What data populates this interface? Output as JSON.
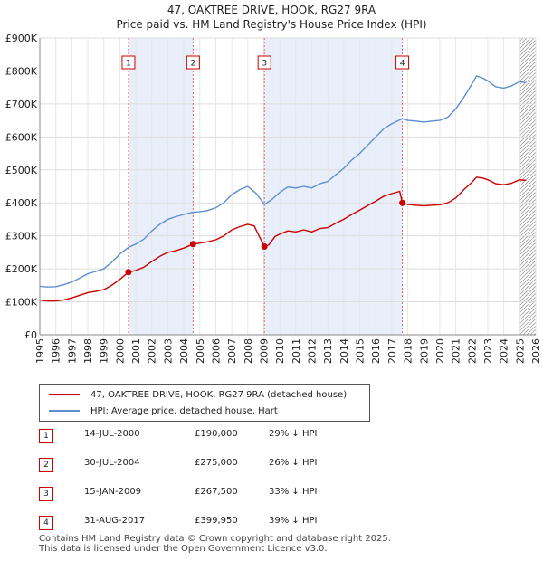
{
  "title_line1": "47, OAKTREE DRIVE, HOOK, RG27 9RA",
  "title_line2": "Price paid vs. HM Land Registry's House Price Index (HPI)",
  "colors": {
    "property": "#cc0000",
    "hpi": "#5b8fd0",
    "band": "#e8eefa",
    "marker": "#cc0000"
  },
  "chart_data": {
    "type": "line",
    "title": "Price paid vs. HM Land Registry's House Price Index (HPI)",
    "xlabel": "",
    "ylabel": "",
    "xlim": [
      1995,
      2026
    ],
    "ylim": [
      0,
      900000
    ],
    "x_ticks": [
      "1995",
      "1996",
      "1997",
      "1998",
      "1999",
      "2000",
      "2001",
      "2002",
      "2003",
      "2004",
      "2005",
      "2006",
      "2007",
      "2008",
      "2009",
      "2010",
      "2011",
      "2012",
      "2013",
      "2014",
      "2015",
      "2016",
      "2017",
      "2018",
      "2019",
      "2020",
      "2021",
      "2022",
      "2023",
      "2024",
      "2025",
      "2026"
    ],
    "y_ticks": [
      {
        "value": 0,
        "label": "£0"
      },
      {
        "value": 100000,
        "label": "£100K"
      },
      {
        "value": 200000,
        "label": "£200K"
      },
      {
        "value": 300000,
        "label": "£300K"
      },
      {
        "value": 400000,
        "label": "£400K"
      },
      {
        "value": 500000,
        "label": "£500K"
      },
      {
        "value": 600000,
        "label": "£600K"
      },
      {
        "value": 700000,
        "label": "£700K"
      },
      {
        "value": 800000,
        "label": "£800K"
      },
      {
        "value": 900000,
        "label": "£900K"
      }
    ],
    "series": [
      {
        "name": "47, OAKTREE DRIVE, HOOK, RG27 9RA (detached house)",
        "color": "#cc0000",
        "points": [
          [
            1995.0,
            105000
          ],
          [
            1995.5,
            103000
          ],
          [
            1996.0,
            103000
          ],
          [
            1996.5,
            106000
          ],
          [
            1997.0,
            112000
          ],
          [
            1997.5,
            120000
          ],
          [
            1998.0,
            128000
          ],
          [
            1998.5,
            132000
          ],
          [
            1999.0,
            137000
          ],
          [
            1999.5,
            150000
          ],
          [
            2000.0,
            168000
          ],
          [
            2000.54,
            190000
          ],
          [
            2001.0,
            195000
          ],
          [
            2001.5,
            205000
          ],
          [
            2002.0,
            222000
          ],
          [
            2002.5,
            238000
          ],
          [
            2003.0,
            250000
          ],
          [
            2003.5,
            255000
          ],
          [
            2004.0,
            263000
          ],
          [
            2004.58,
            275000
          ],
          [
            2005.0,
            278000
          ],
          [
            2005.5,
            282000
          ],
          [
            2006.0,
            288000
          ],
          [
            2006.5,
            300000
          ],
          [
            2007.0,
            318000
          ],
          [
            2007.5,
            328000
          ],
          [
            2008.0,
            335000
          ],
          [
            2008.4,
            330000
          ],
          [
            2008.7,
            300000
          ],
          [
            2009.04,
            267500
          ],
          [
            2009.3,
            272000
          ],
          [
            2009.7,
            298000
          ],
          [
            2010.0,
            305000
          ],
          [
            2010.5,
            315000
          ],
          [
            2011.0,
            312000
          ],
          [
            2011.5,
            318000
          ],
          [
            2012.0,
            312000
          ],
          [
            2012.5,
            322000
          ],
          [
            2013.0,
            325000
          ],
          [
            2013.5,
            338000
          ],
          [
            2014.0,
            350000
          ],
          [
            2014.5,
            365000
          ],
          [
            2015.0,
            378000
          ],
          [
            2015.5,
            392000
          ],
          [
            2016.0,
            405000
          ],
          [
            2016.5,
            420000
          ],
          [
            2017.0,
            428000
          ],
          [
            2017.5,
            435000
          ],
          [
            2017.66,
            399950
          ],
          [
            2018.0,
            395000
          ],
          [
            2018.5,
            393000
          ],
          [
            2019.0,
            391000
          ],
          [
            2019.5,
            393000
          ],
          [
            2020.0,
            394000
          ],
          [
            2020.5,
            400000
          ],
          [
            2021.0,
            415000
          ],
          [
            2021.5,
            440000
          ],
          [
            2022.0,
            462000
          ],
          [
            2022.3,
            478000
          ],
          [
            2022.7,
            475000
          ],
          [
            2023.0,
            470000
          ],
          [
            2023.5,
            458000
          ],
          [
            2024.0,
            455000
          ],
          [
            2024.5,
            460000
          ],
          [
            2025.0,
            470000
          ],
          [
            2025.4,
            468000
          ]
        ]
      },
      {
        "name": "HPI: Average price, detached house, Hart",
        "color": "#5b8fd0",
        "points": [
          [
            1995.0,
            147000
          ],
          [
            1995.5,
            145000
          ],
          [
            1996.0,
            146000
          ],
          [
            1996.5,
            152000
          ],
          [
            1997.0,
            160000
          ],
          [
            1997.5,
            172000
          ],
          [
            1998.0,
            185000
          ],
          [
            1998.5,
            192000
          ],
          [
            1999.0,
            200000
          ],
          [
            1999.5,
            220000
          ],
          [
            2000.0,
            245000
          ],
          [
            2000.54,
            265000
          ],
          [
            2001.0,
            275000
          ],
          [
            2001.5,
            290000
          ],
          [
            2002.0,
            315000
          ],
          [
            2002.5,
            335000
          ],
          [
            2003.0,
            350000
          ],
          [
            2003.5,
            358000
          ],
          [
            2004.0,
            365000
          ],
          [
            2004.58,
            372000
          ],
          [
            2005.0,
            373000
          ],
          [
            2005.5,
            377000
          ],
          [
            2006.0,
            385000
          ],
          [
            2006.5,
            400000
          ],
          [
            2007.0,
            425000
          ],
          [
            2007.5,
            440000
          ],
          [
            2008.0,
            450000
          ],
          [
            2008.5,
            430000
          ],
          [
            2009.04,
            395000
          ],
          [
            2009.5,
            410000
          ],
          [
            2010.0,
            432000
          ],
          [
            2010.5,
            448000
          ],
          [
            2011.0,
            445000
          ],
          [
            2011.5,
            450000
          ],
          [
            2012.0,
            445000
          ],
          [
            2012.5,
            458000
          ],
          [
            2013.0,
            465000
          ],
          [
            2013.5,
            485000
          ],
          [
            2014.0,
            505000
          ],
          [
            2014.5,
            530000
          ],
          [
            2015.0,
            550000
          ],
          [
            2015.5,
            575000
          ],
          [
            2016.0,
            600000
          ],
          [
            2016.5,
            625000
          ],
          [
            2017.0,
            640000
          ],
          [
            2017.66,
            655000
          ],
          [
            2018.0,
            650000
          ],
          [
            2018.5,
            648000
          ],
          [
            2019.0,
            645000
          ],
          [
            2019.5,
            648000
          ],
          [
            2020.0,
            650000
          ],
          [
            2020.5,
            660000
          ],
          [
            2021.0,
            685000
          ],
          [
            2021.5,
            720000
          ],
          [
            2022.0,
            760000
          ],
          [
            2022.3,
            785000
          ],
          [
            2022.7,
            778000
          ],
          [
            2023.0,
            770000
          ],
          [
            2023.5,
            752000
          ],
          [
            2024.0,
            748000
          ],
          [
            2024.5,
            755000
          ],
          [
            2025.0,
            768000
          ],
          [
            2025.4,
            764000
          ]
        ]
      }
    ],
    "sales": [
      {
        "label": "1",
        "x": 2000.54,
        "price": 190000
      },
      {
        "label": "2",
        "x": 2004.58,
        "price": 275000
      },
      {
        "label": "3",
        "x": 2009.04,
        "price": 267500
      },
      {
        "label": "4",
        "x": 2017.66,
        "price": 399950
      }
    ],
    "bands": [
      [
        2000.54,
        2004.58
      ],
      [
        2009.04,
        2017.66
      ]
    ],
    "hatch_from": 2025.0
  },
  "legend": {
    "property": "47, OAKTREE DRIVE, HOOK, RG27 9RA (detached house)",
    "hpi": "HPI: Average price, detached house, Hart"
  },
  "sales_table": [
    {
      "num": "1",
      "date": "14-JUL-2000",
      "price": "£190,000",
      "hpi": "29% ↓ HPI"
    },
    {
      "num": "2",
      "date": "30-JUL-2004",
      "price": "£275,000",
      "hpi": "26% ↓ HPI"
    },
    {
      "num": "3",
      "date": "15-JAN-2009",
      "price": "£267,500",
      "hpi": "33% ↓ HPI"
    },
    {
      "num": "4",
      "date": "31-AUG-2017",
      "price": "£399,950",
      "hpi": "39% ↓ HPI"
    }
  ],
  "footer": {
    "line1": "Contains HM Land Registry data © Crown copyright and database right 2025.",
    "line2": "This data is licensed under the Open Government Licence v3.0."
  }
}
